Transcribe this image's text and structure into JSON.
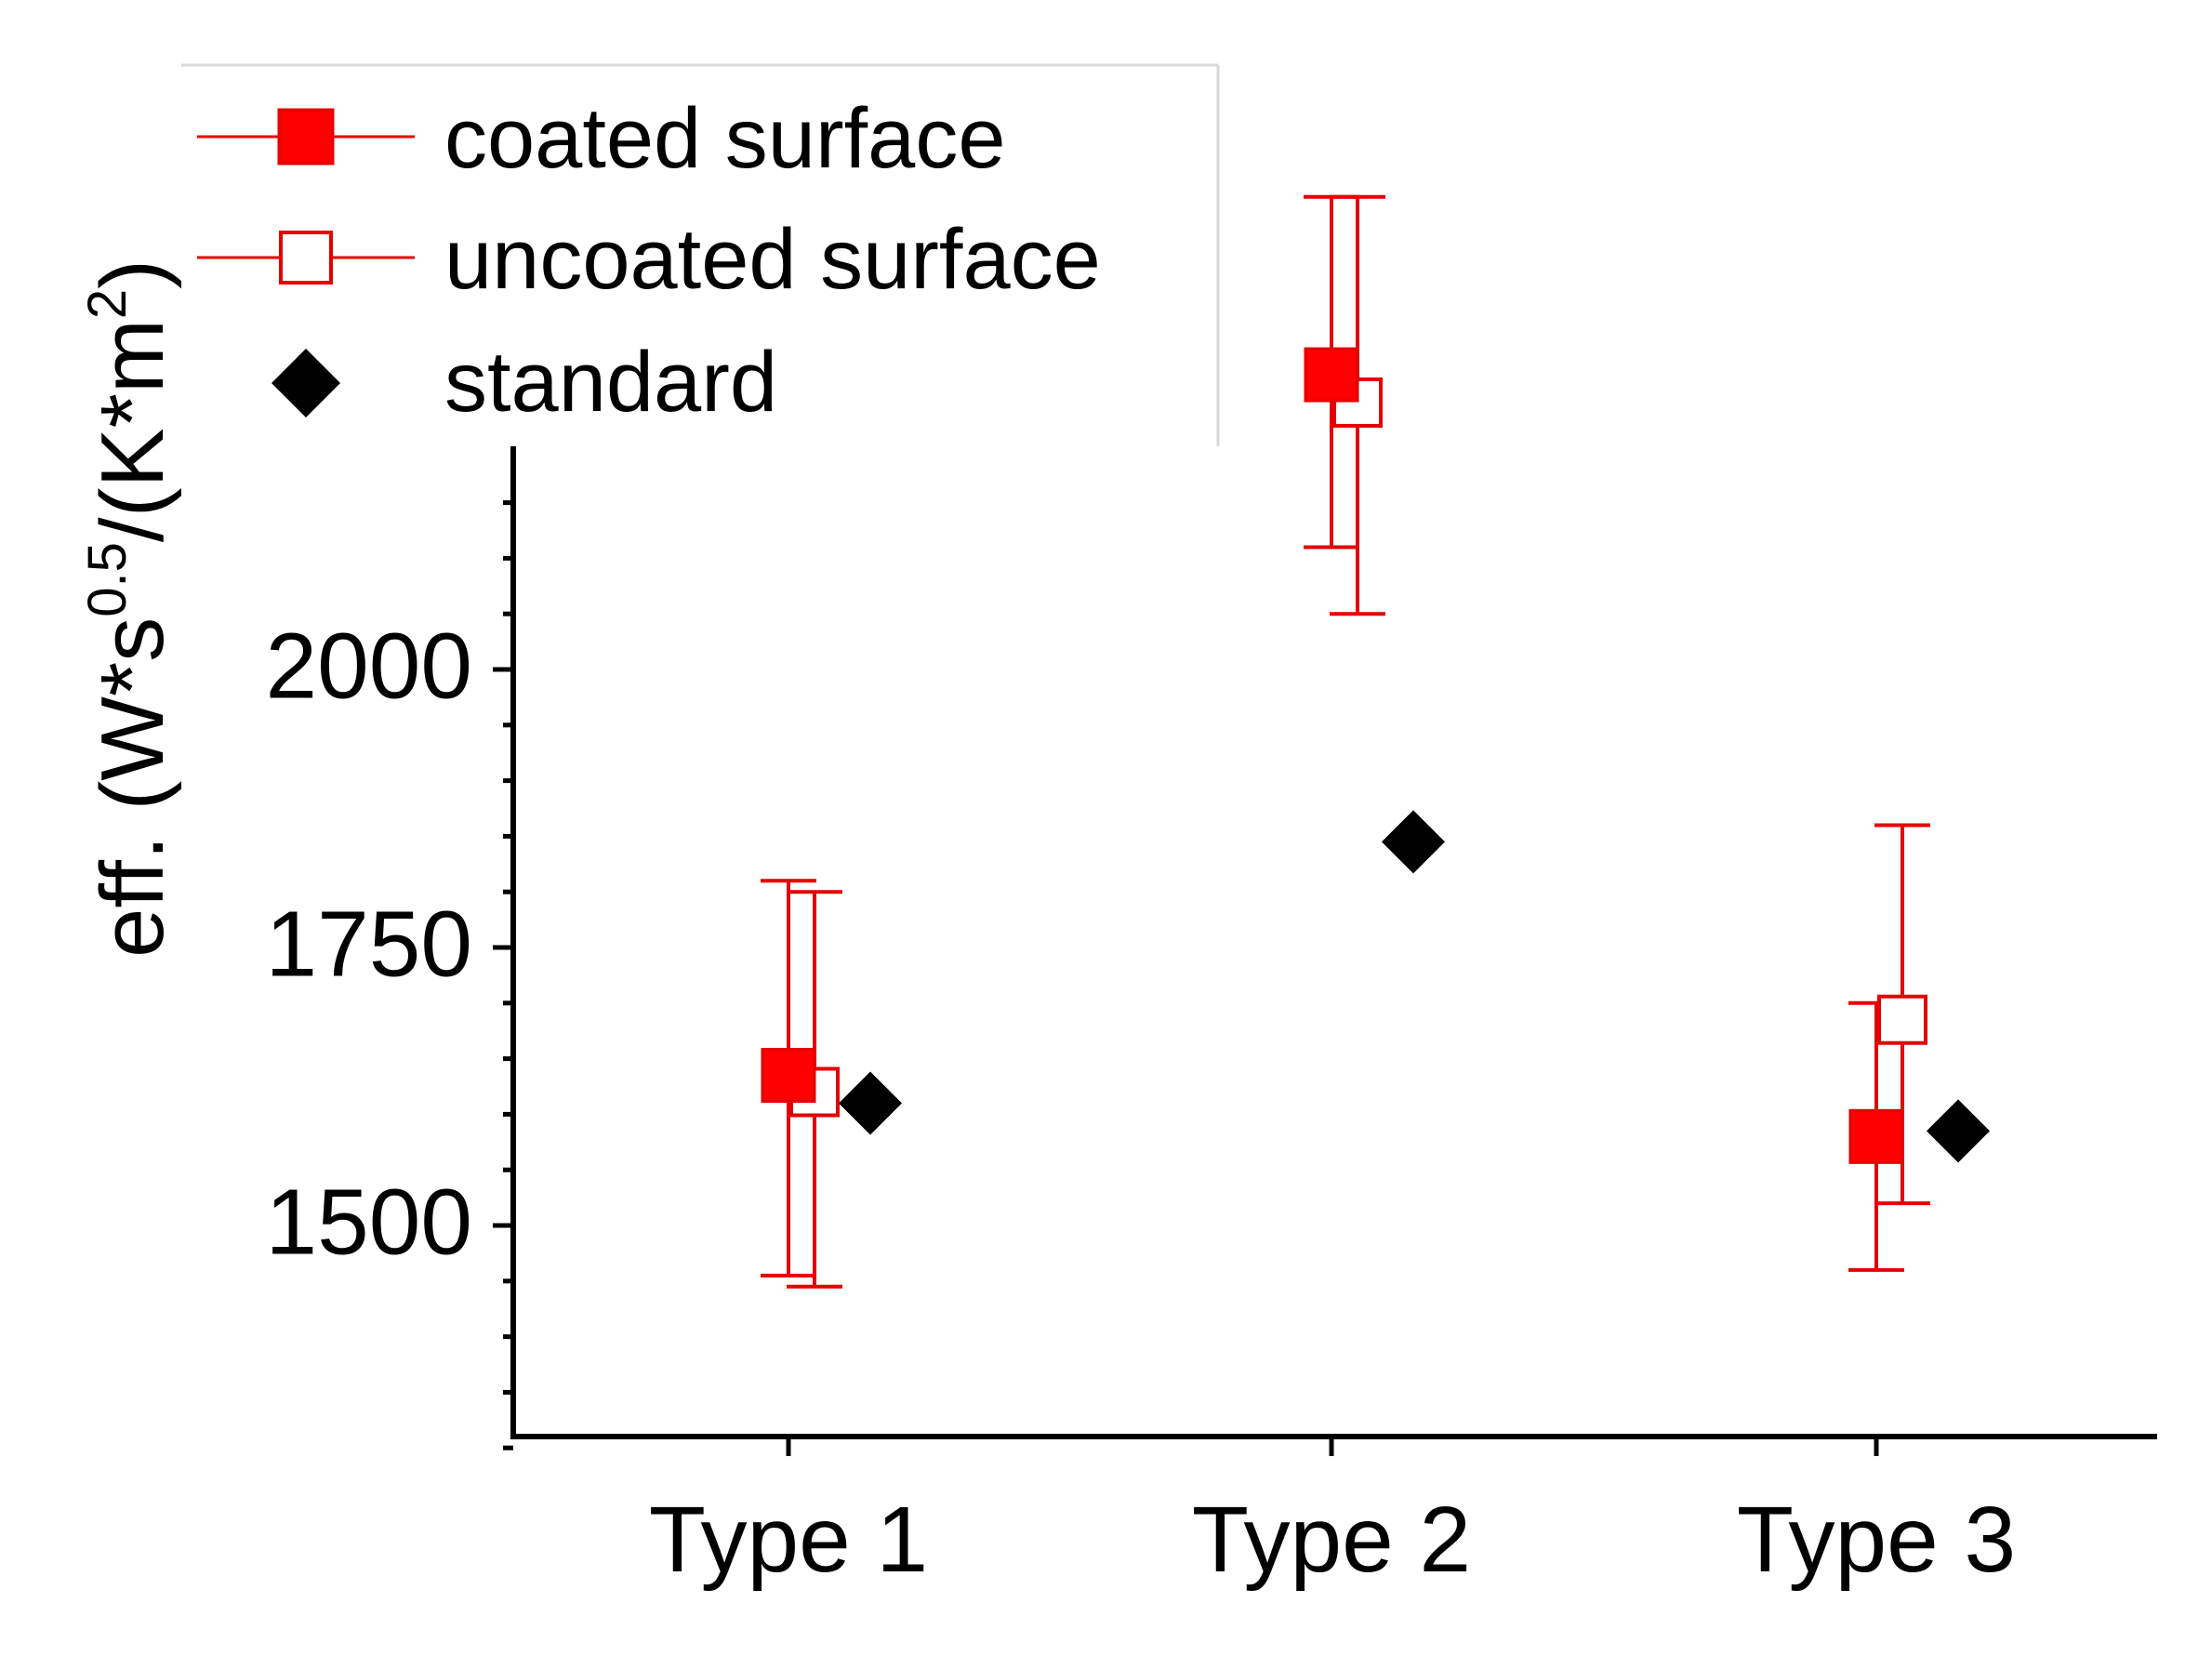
{
  "chart_data": {
    "type": "scatter",
    "ylabel": {
      "prefix": "eff. (W*s",
      "sup1": "0.5",
      "middle": "/(K*m",
      "sup2": "2",
      "suffix": ")"
    },
    "categories": [
      "Type 1",
      "Type 2",
      "Type 3"
    ],
    "ylim": [
      1300,
      2200
    ],
    "yticks": [
      1500,
      1750,
      2000
    ],
    "yticks_labels": [
      "1500",
      "1750",
      "2000"
    ],
    "grid": false,
    "legend_position": "top-left",
    "series": [
      {
        "name": "coated surface",
        "marker": "filled-square",
        "color": "#e60000",
        "values": [
          1635,
          2265,
          1580
        ],
        "err_low": [
          1455,
          2110,
          1460
        ],
        "err_high": [
          1810,
          2425,
          1700
        ]
      },
      {
        "name": "uncoated surface",
        "marker": "open-square",
        "color": "#e60000",
        "values": [
          1620,
          2240,
          1685
        ],
        "err_low": [
          1445,
          2050,
          1520
        ],
        "err_high": [
          1800,
          2425,
          1860
        ]
      },
      {
        "name": "standard",
        "marker": "diamond",
        "color": "#000000",
        "values": [
          1610,
          1845,
          1585
        ]
      }
    ]
  }
}
